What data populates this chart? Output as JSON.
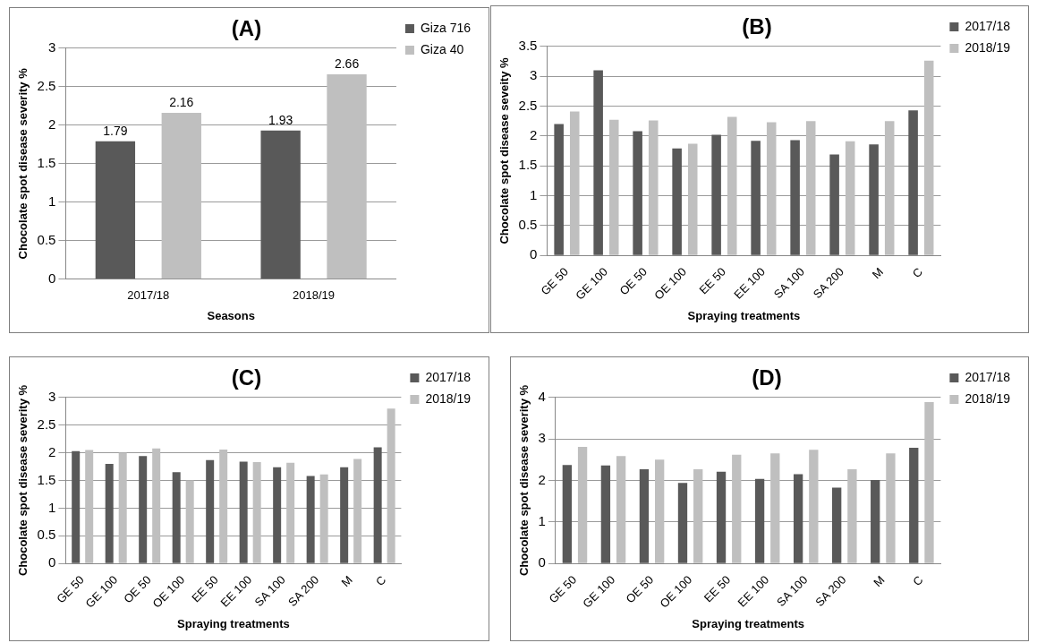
{
  "chart_data": [
    {
      "type": "bar",
      "title": "(A)",
      "xlabel": "Seasons",
      "ylabel": "Chocolate spot disease severity %",
      "categories": [
        "2017/18",
        "2018/19"
      ],
      "series": [
        {
          "name": "Giza 716",
          "color": "#595959",
          "values": [
            1.79,
            1.93
          ]
        },
        {
          "name": "Giza 40",
          "color": "#bfbfbf",
          "values": [
            2.16,
            2.66
          ]
        }
      ],
      "ylim": [
        0,
        3
      ],
      "yticks": [
        0,
        0.5,
        1,
        1.5,
        2,
        2.5,
        3
      ],
      "grid": "y",
      "legend": "top right",
      "data_labels": true
    },
    {
      "type": "bar",
      "title": "(B)",
      "xlabel": "Spraying treatments",
      "ylabel": "Chocolate spot disease seveity %",
      "categories": [
        "GE 50",
        "GE 100",
        "OE 50",
        "OE 100",
        "EE 50",
        "EE 100",
        "SA 100",
        "SA 200",
        "M",
        "C"
      ],
      "series": [
        {
          "name": "2017/18",
          "color": "#595959",
          "values": [
            2.2,
            3.1,
            2.08,
            1.79,
            2.02,
            1.92,
            1.93,
            1.69,
            1.86,
            2.43
          ]
        },
        {
          "name": "2018/19",
          "color": "#bfbfbf",
          "values": [
            2.41,
            2.27,
            2.26,
            1.87,
            2.32,
            2.23,
            2.25,
            1.91,
            2.25,
            3.26
          ]
        }
      ],
      "ylim": [
        0,
        3.5
      ],
      "yticks": [
        0,
        0.5,
        1,
        1.5,
        2,
        2.5,
        3,
        3.5
      ],
      "grid": "y",
      "legend": "top right"
    },
    {
      "type": "bar",
      "title": "(C)",
      "xlabel": "Spraying treatments",
      "ylabel": "Chocolate spot disease severity %",
      "categories": [
        "GE 50",
        "GE 100",
        "OE 50",
        "OE 100",
        "EE 50",
        "EE 100",
        "SA 100",
        "SA 200",
        "M",
        "C"
      ],
      "series": [
        {
          "name": "2017/18",
          "color": "#595959",
          "values": [
            2.03,
            1.8,
            1.94,
            1.65,
            1.87,
            1.84,
            1.74,
            1.58,
            1.74,
            2.1
          ]
        },
        {
          "name": "2018/19",
          "color": "#bfbfbf",
          "values": [
            2.05,
            2.0,
            2.08,
            1.5,
            2.06,
            1.83,
            1.82,
            1.61,
            1.89,
            2.8
          ]
        }
      ],
      "ylim": [
        0,
        3
      ],
      "yticks": [
        0,
        0.5,
        1,
        1.5,
        2,
        2.5,
        3
      ],
      "grid": "y",
      "legend": "top right"
    },
    {
      "type": "bar",
      "title": "(D)",
      "xlabel": "Spraying treatments",
      "ylabel": "Chocolate spot disease severity %",
      "categories": [
        "GE 50",
        "GE 100",
        "OE 50",
        "OE 100",
        "EE 50",
        "EE 100",
        "SA 100",
        "SA 200",
        "M",
        "C"
      ],
      "series": [
        {
          "name": "2017/18",
          "color": "#595959",
          "values": [
            2.37,
            2.36,
            2.27,
            1.94,
            2.21,
            2.04,
            2.15,
            1.83,
            2.01,
            2.79
          ]
        },
        {
          "name": "2018/19",
          "color": "#bfbfbf",
          "values": [
            2.81,
            2.59,
            2.5,
            2.27,
            2.62,
            2.65,
            2.74,
            2.27,
            2.65,
            3.89
          ]
        }
      ],
      "ylim": [
        0,
        4
      ],
      "yticks": [
        0,
        1,
        2,
        3,
        4
      ],
      "grid": "y",
      "legend": "top right"
    }
  ]
}
